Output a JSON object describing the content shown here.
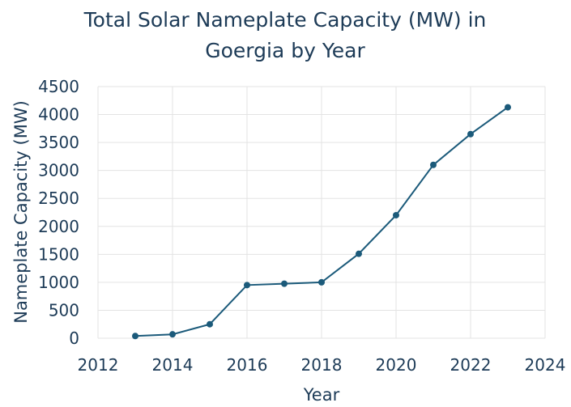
{
  "chart_data": {
    "type": "line",
    "title_lines": [
      "Total Solar Nameplate Capacity (MW) in",
      "Goergia by Year"
    ],
    "xlabel": "Year",
    "ylabel": "Nameplate Capacity (MW)",
    "xlim": [
      2012,
      2024
    ],
    "ylim": [
      0,
      4500
    ],
    "xticks": [
      2012,
      2014,
      2016,
      2018,
      2020,
      2022,
      2024
    ],
    "yticks": [
      0,
      500,
      1000,
      1500,
      2000,
      2500,
      3000,
      3500,
      4000,
      4500
    ],
    "grid": true,
    "legend": false,
    "color": "#1b5a7a",
    "x": [
      2013,
      2014,
      2015,
      2016,
      2017,
      2018,
      2019,
      2020,
      2021,
      2022,
      2023
    ],
    "y": [
      40,
      70,
      250,
      950,
      975,
      1000,
      1510,
      2200,
      3100,
      3650,
      4130
    ]
  }
}
